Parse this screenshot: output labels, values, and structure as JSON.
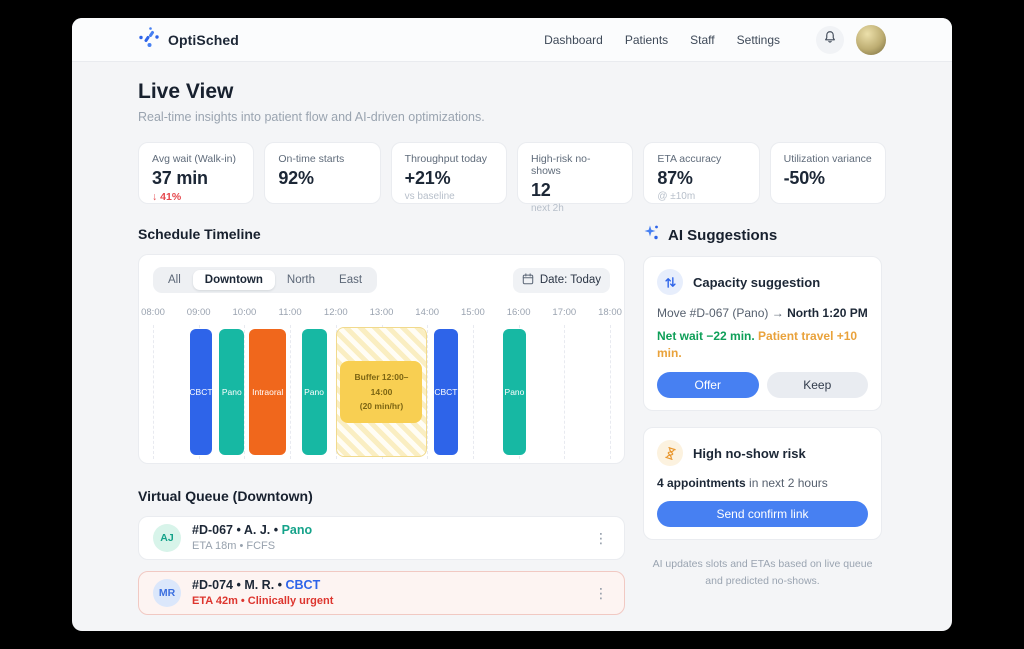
{
  "app": {
    "name": "OptiSched"
  },
  "nav": {
    "items": [
      "Dashboard",
      "Patients",
      "Staff",
      "Settings"
    ]
  },
  "page": {
    "title": "Live View",
    "subtitle": "Real-time insights into patient flow and AI-driven optimizations."
  },
  "stats": [
    {
      "label": "Avg wait (Walk-in)",
      "value": "37 min",
      "sub": "↓ 41%",
      "tone": "negative"
    },
    {
      "label": "On-time starts",
      "value": "92%",
      "sub": "",
      "tone": "muted"
    },
    {
      "label": "Throughput today",
      "value": "+21%",
      "sub": "vs baseline",
      "tone": "muted"
    },
    {
      "label": "High-risk no-shows",
      "value": "12",
      "sub": "next 2h",
      "tone": "muted"
    },
    {
      "label": "ETA accuracy",
      "value": "87%",
      "sub": "@ ±10m",
      "tone": "muted"
    },
    {
      "label": "Utilization variance",
      "value": "-50%",
      "sub": "",
      "tone": "muted"
    }
  ],
  "timeline": {
    "heading": "Schedule Timeline",
    "tabs": [
      {
        "label": "All",
        "active": false
      },
      {
        "label": "Downtown",
        "active": true
      },
      {
        "label": "North",
        "active": false
      },
      {
        "label": "East",
        "active": false
      }
    ],
    "date_label": "Date: Today",
    "axis": {
      "start": 8,
      "end": 18
    },
    "hours": [
      "08:00",
      "09:00",
      "10:00",
      "11:00",
      "12:00",
      "13:00",
      "14:00",
      "15:00",
      "16:00",
      "17:00",
      "18:00"
    ],
    "bars": [
      {
        "type": "appointment",
        "label": "CBCT",
        "start": 8.8,
        "end": 9.3,
        "color": "#2e64e9"
      },
      {
        "type": "appointment",
        "label": "Pano",
        "start": 9.45,
        "end": 10.0,
        "color": "#17b8a3"
      },
      {
        "type": "appointment",
        "label": "Intraoral",
        "start": 10.1,
        "end": 10.92,
        "color": "#f0671c"
      },
      {
        "type": "appointment",
        "label": "Pano",
        "start": 11.25,
        "end": 11.8,
        "color": "#17b8a3"
      },
      {
        "type": "buffer",
        "line1": "Buffer 12:00–14:00",
        "line2": "(20 min/hr)",
        "start": 12.0,
        "end": 14.0
      },
      {
        "type": "appointment",
        "label": "CBCT",
        "start": 14.15,
        "end": 14.67,
        "color": "#2e64e9"
      },
      {
        "type": "appointment",
        "label": "Pano",
        "start": 15.65,
        "end": 16.17,
        "color": "#17b8a3"
      }
    ]
  },
  "queue": {
    "heading": "Virtual Queue (Downtown)",
    "items": [
      {
        "initials": "AJ",
        "avatar_bg": "#d8f4ea",
        "avatar_fg": "#14a289",
        "id": "#D-067",
        "name": "A. J.",
        "procedure": "Pano",
        "procedure_color": "#15a38a",
        "meta": "ETA 18m • FCFS",
        "urgent": false
      },
      {
        "initials": "MR",
        "avatar_bg": "#dbe7fb",
        "avatar_fg": "#3b6fe0",
        "id": "#D-074",
        "name": "M. R.",
        "procedure": "CBCT",
        "procedure_color": "#2e64e9",
        "meta": "ETA 42m • Clinically urgent",
        "urgent": true
      }
    ],
    "menu_icon": "⋮"
  },
  "ai": {
    "heading": "AI Suggestions",
    "capacity": {
      "title": "Capacity suggestion",
      "move_prefix": "Move #D-067 (Pano) → ",
      "move_target": "North 1:20 PM",
      "net_wait": "Net wait −22 min.",
      "travel": " Patient travel +10 min.",
      "offer_label": "Offer",
      "keep_label": "Keep"
    },
    "noshow": {
      "title": "High no-show risk",
      "count": "4 appointments",
      "rest": " in next 2 hours",
      "button_label": "Send confirm link"
    },
    "footer": "AI updates slots and ETAs based on live queue and predicted no-shows."
  },
  "colors": {
    "accent_blue": "#4780f2",
    "bar_blue": "#2e64e9",
    "bar_teal": "#17b8a3",
    "bar_orange": "#f0671c",
    "buffer_yellow": "#f8cf52",
    "negative_red": "#e5484d",
    "positive_green": "#0e9f58",
    "warn_orange": "#e9a23b"
  }
}
